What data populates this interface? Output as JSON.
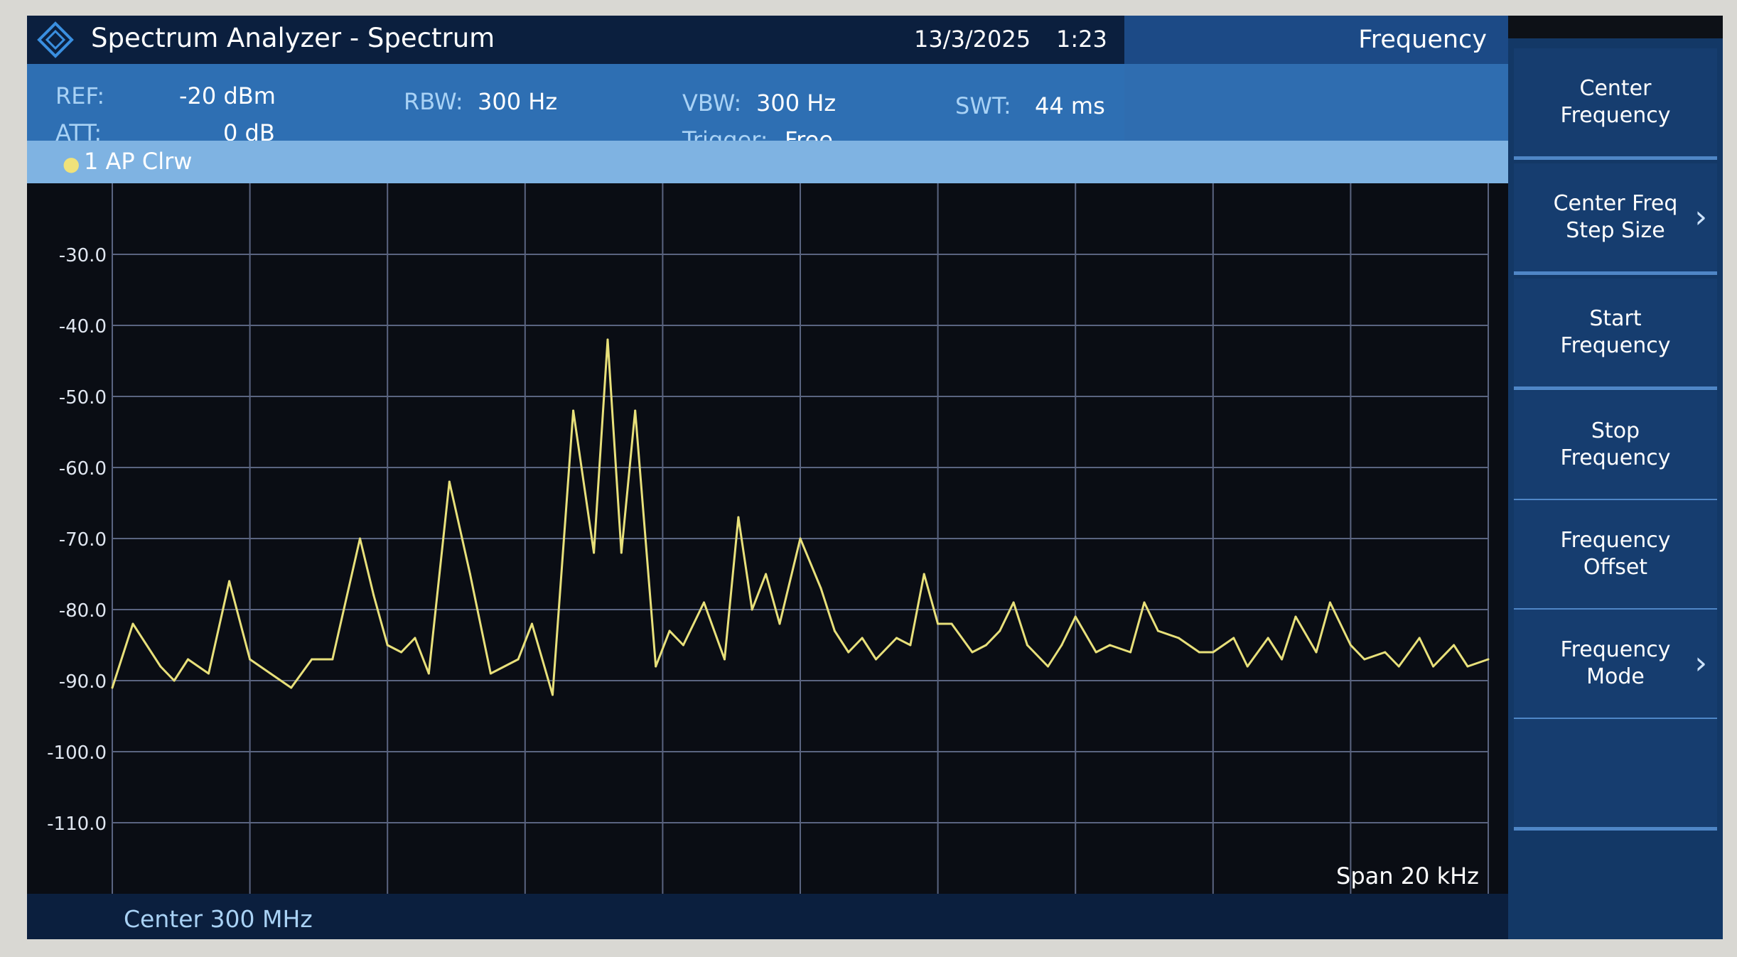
{
  "window": {
    "title": "Spectrum Analyzer - Spectrum",
    "date": "13/3/2025",
    "time": "1:23",
    "logo_icon": "rohde-schwarz-diamond-logo"
  },
  "settings": {
    "ref_label": "REF:",
    "ref_value": "-20 dBm",
    "att_label": "ATT:",
    "att_value": "0 dB",
    "rbw_label": "RBW:",
    "rbw_value": "300 Hz",
    "vbw_label": "VBW:",
    "vbw_value": "300 Hz",
    "trigger_label": "Trigger:",
    "trigger_value": "Free",
    "swt_label": "SWT:",
    "swt_value": "44 ms"
  },
  "menu_title": "Frequency",
  "trace": {
    "label": "1 AP Clrw",
    "color": "#e8e07a"
  },
  "softkeys": [
    {
      "line1": "Center",
      "line2": "Frequency",
      "has_submenu": false
    },
    {
      "line1": "Center Freq",
      "line2": "Step Size",
      "has_submenu": true
    },
    {
      "line1": "Start",
      "line2": "Frequency",
      "has_submenu": false
    },
    {
      "line1": "Stop",
      "line2": "Frequency",
      "has_submenu": false
    },
    {
      "line1": "Frequency",
      "line2": "Offset",
      "has_submenu": false
    },
    {
      "line1": "Frequency",
      "line2": "Mode",
      "has_submenu": true
    },
    {
      "line1": "",
      "line2": "",
      "has_submenu": false
    }
  ],
  "footer": {
    "center": "Center 300 MHz",
    "span": "Span 20 kHz"
  },
  "chart_data": {
    "type": "line",
    "ylim": [
      -120,
      -20
    ],
    "yticks": [
      "-30.0",
      "-40.0",
      "-50.0",
      "-60.0",
      "-70.0",
      "-80.0",
      "-90.0",
      "-100.0",
      "-110.0"
    ],
    "xlim": [
      -10,
      10
    ],
    "grid": true,
    "series": [
      {
        "color": "#e8e07a",
        "x": [
          -10.0,
          -9.7,
          -9.3,
          -9.1,
          -8.9,
          -8.6,
          -8.3,
          -8.0,
          -7.7,
          -7.4,
          -7.1,
          -6.8,
          -6.4,
          -6.2,
          -6.0,
          -5.8,
          -5.6,
          -5.4,
          -5.1,
          -4.8,
          -4.5,
          -4.1,
          -3.9,
          -3.6,
          -3.3,
          -3.0,
          -2.8,
          -2.6,
          -2.4,
          -2.1,
          -1.9,
          -1.7,
          -1.4,
          -1.1,
          -0.9,
          -0.7,
          -0.5,
          -0.3,
          0.0,
          0.3,
          0.5,
          0.7,
          0.9,
          1.1,
          1.4,
          1.6,
          1.8,
          2.0,
          2.2,
          2.5,
          2.7,
          2.9,
          3.1,
          3.3,
          3.6,
          3.8,
          4.0,
          4.3,
          4.5,
          4.8,
          5.0,
          5.2,
          5.5,
          5.8,
          6.0,
          6.3,
          6.5,
          6.8,
          7.0,
          7.2,
          7.5,
          7.7,
          8.0,
          8.2,
          8.5,
          8.7,
          9.0,
          9.2,
          9.5,
          9.7,
          10.0
        ],
        "y": [
          -91,
          -82,
          -88,
          -90,
          -87,
          -89,
          -76,
          -87,
          -89,
          -91,
          -87,
          -87,
          -70,
          -78,
          -85,
          -86,
          -84,
          -89,
          -62,
          -75,
          -89,
          -87,
          -82,
          -92,
          -52,
          -72,
          -42,
          -72,
          -52,
          -88,
          -83,
          -85,
          -79,
          -87,
          -67,
          -80,
          -75,
          -82,
          -70,
          -77,
          -83,
          -86,
          -84,
          -87,
          -84,
          -85,
          -75,
          -82,
          -82,
          -86,
          -85,
          -83,
          -79,
          -85,
          -88,
          -85,
          -81,
          -86,
          -85,
          -86,
          -79,
          -83,
          -84,
          -86,
          -86,
          -84,
          -88,
          -84,
          -87,
          -81,
          -86,
          -79,
          -85,
          -87,
          -86,
          -88,
          -84,
          -88,
          -85,
          -88,
          -87
        ]
      }
    ]
  }
}
